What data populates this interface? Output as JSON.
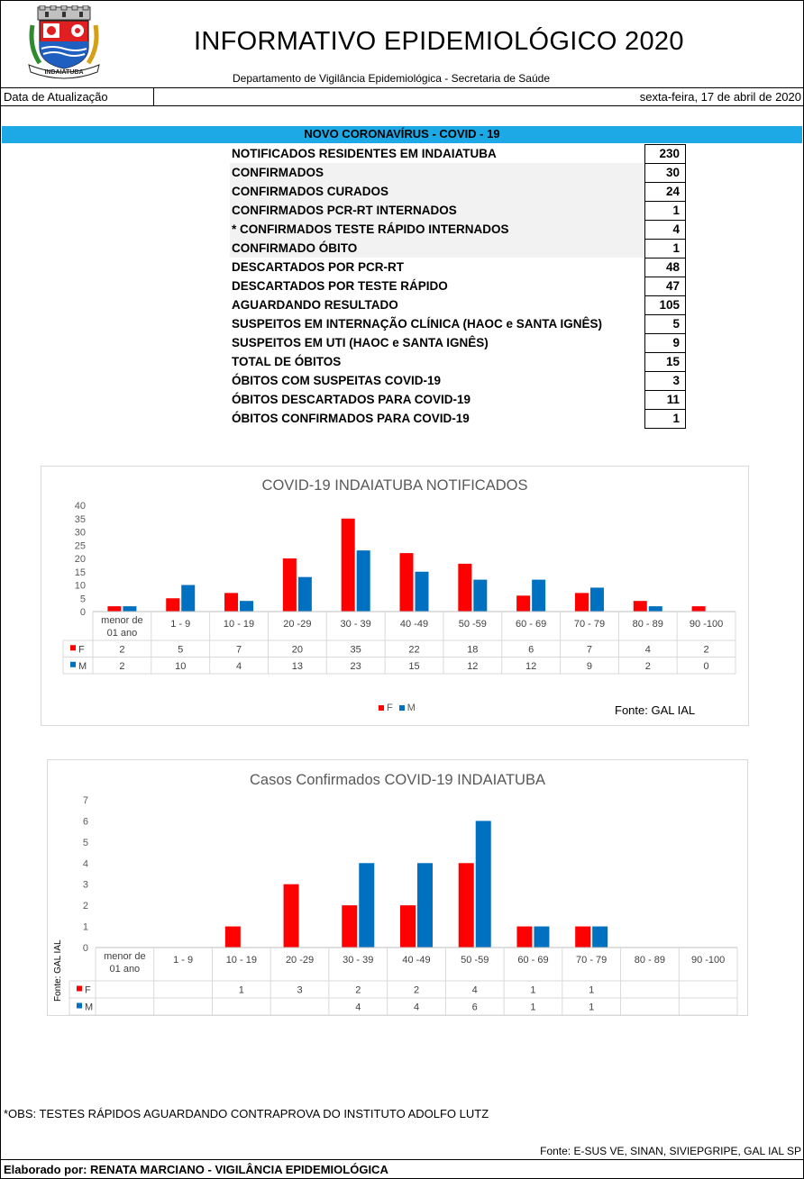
{
  "header": {
    "title": "INFORMATIVO EPIDEMIOLÓGICO 2020",
    "subtitle": "Departamento de Vigilância Epidemiológica - Secretaria de Saúde",
    "crest_text": "INDAIATUBA",
    "update_label": "Data de Atualização",
    "update_value": "sexta-feira, 17 de abril de 2020"
  },
  "section_title": "NOVO CORONAVÍRUS - COVID - 19",
  "stats": [
    {
      "label": "NOTIFICADOS RESIDENTES EM INDAIATUBA",
      "value": "230"
    },
    {
      "label": "CONFIRMADOS",
      "value": "30"
    },
    {
      "label": "CONFIRMADOS CURADOS",
      "value": "24"
    },
    {
      "label": "CONFIRMADOS PCR-RT INTERNADOS",
      "value": "1"
    },
    {
      "label": "* CONFIRMADOS TESTE RÁPIDO INTERNADOS",
      "value": "4"
    },
    {
      "label": "CONFIRMADO ÓBITO",
      "value": "1"
    },
    {
      "label": "DESCARTADOS POR PCR-RT",
      "value": "48"
    },
    {
      "label": "DESCARTADOS POR TESTE RÁPIDO",
      "value": "47"
    },
    {
      "label": "AGUARDANDO RESULTADO",
      "value": "105"
    },
    {
      "label": "SUSPEITOS EM INTERNAÇÃO CLÍNICA (HAOC e SANTA IGNÊS)",
      "value": "5"
    },
    {
      "label": "SUSPEITOS EM UTI (HAOC e SANTA IGNÊS)",
      "value": "9"
    },
    {
      "label": "TOTAL DE ÓBITOS",
      "value": "15"
    },
    {
      "label": "ÓBITOS COM SUSPEITAS COVID-19",
      "value": "3"
    },
    {
      "label": "ÓBITOS DESCARTADOS PARA COVID-19",
      "value": "11"
    },
    {
      "label": "ÓBITOS CONFIRMADOS PARA COVID-19",
      "value": "1"
    }
  ],
  "colors": {
    "female": "#ff0000",
    "male": "#0070c0",
    "header_bar": "#1da9e6"
  },
  "chart_data": [
    {
      "type": "bar",
      "title": "COVID-19 INDAIATUBA NOTIFICADOS",
      "categories": [
        "menor de 01 ano",
        "1 - 9",
        "10 - 19",
        "20 -29",
        "30 - 39",
        "40 -49",
        "50 -59",
        "60 - 69",
        "70 - 79",
        "80 - 89",
        "90 -100"
      ],
      "series": [
        {
          "name": "F",
          "values": [
            2,
            5,
            7,
            20,
            35,
            22,
            18,
            6,
            7,
            4,
            2
          ]
        },
        {
          "name": "M",
          "values": [
            2,
            10,
            4,
            13,
            23,
            15,
            12,
            12,
            9,
            2,
            0
          ]
        }
      ],
      "ylim": [
        0,
        40
      ],
      "yticks": [
        0,
        5,
        10,
        15,
        20,
        25,
        30,
        35,
        40
      ],
      "data_table": true,
      "legend": "bottom",
      "source": "Fonte: GAL IAL"
    },
    {
      "type": "bar",
      "title": "Casos Confirmados COVID-19 INDAIATUBA",
      "categories": [
        "menor de 01 ano",
        "1 - 9",
        "10 - 19",
        "20 -29",
        "30 - 39",
        "40 -49",
        "50 -59",
        "60 - 69",
        "70 - 79",
        "80 - 89",
        "90 -100"
      ],
      "series": [
        {
          "name": "F",
          "values": [
            null,
            null,
            1,
            3,
            2,
            2,
            4,
            1,
            1,
            null,
            null
          ]
        },
        {
          "name": "M",
          "values": [
            null,
            null,
            null,
            null,
            4,
            4,
            6,
            1,
            1,
            null,
            null
          ]
        }
      ],
      "ylim": [
        0,
        7
      ],
      "yticks": [
        0,
        1,
        2,
        3,
        4,
        5,
        6,
        7
      ],
      "data_table": true,
      "source": "Fonte: GAL IAL"
    }
  ],
  "footer": {
    "note": "*OBS: TESTES RÁPIDOS AGUARDANDO CONTRAPROVA DO INSTITUTO ADOLFO LUTZ",
    "source": "Fonte: E-SUS VE, SINAN, SIVIEPGRIPE, GAL IAL SP",
    "author": "Elaborado por: RENATA MARCIANO - VIGILÂNCIA EPIDEMIOLÓGICA"
  }
}
